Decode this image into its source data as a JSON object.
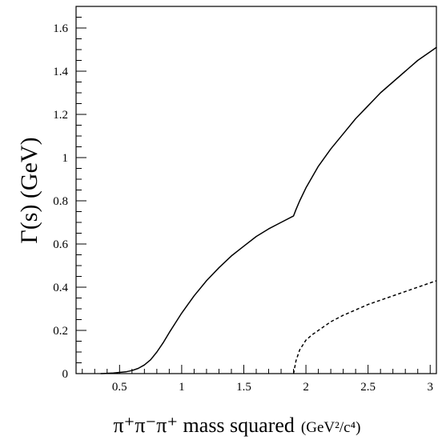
{
  "chart_data": {
    "type": "line",
    "title": "",
    "ylabel": "Γ(s) (GeV)",
    "xlabel": {
      "main": "π⁺π⁻π⁺ mass squared",
      "units": "(GeV²/c⁴)"
    },
    "xlim": [
      0.15,
      3.05
    ],
    "ylim": [
      0,
      1.7
    ],
    "xticks": [
      0.5,
      1,
      1.5,
      2,
      2.5,
      3
    ],
    "xtick_labels": [
      "0.5",
      "1",
      "1.5",
      "2",
      "2.5",
      "3"
    ],
    "yticks": [
      0,
      0.2,
      0.4,
      0.6,
      0.8,
      1.0,
      1.2,
      1.4,
      1.6
    ],
    "ytick_labels": [
      "0",
      "0.2",
      "0.4",
      "0.6",
      "0.8",
      "1",
      "1.2",
      "1.4",
      "1.6"
    ],
    "grid": false,
    "legend": "none",
    "series": [
      {
        "style": "solid",
        "x": [
          0.35,
          0.45,
          0.55,
          0.6,
          0.65,
          0.7,
          0.75,
          0.8,
          0.85,
          0.9,
          0.95,
          1.0,
          1.1,
          1.2,
          1.3,
          1.4,
          1.5,
          1.6,
          1.7,
          1.8,
          1.9,
          1.92,
          1.95,
          2.0,
          2.1,
          2.2,
          2.3,
          2.4,
          2.5,
          2.6,
          2.7,
          2.8,
          2.9,
          3.0,
          3.05
        ],
        "y": [
          0.0,
          0.003,
          0.008,
          0.014,
          0.024,
          0.04,
          0.064,
          0.1,
          0.142,
          0.19,
          0.235,
          0.28,
          0.36,
          0.43,
          0.49,
          0.545,
          0.59,
          0.635,
          0.67,
          0.7,
          0.73,
          0.76,
          0.8,
          0.86,
          0.96,
          1.04,
          1.11,
          1.18,
          1.24,
          1.3,
          1.35,
          1.4,
          1.45,
          1.49,
          1.51
        ]
      },
      {
        "style": "dashed",
        "x": [
          1.9,
          1.92,
          1.95,
          2.0,
          2.05,
          2.1,
          2.2,
          2.3,
          2.4,
          2.5,
          2.6,
          2.7,
          2.8,
          2.9,
          3.0,
          3.05
        ],
        "y": [
          0.0,
          0.06,
          0.11,
          0.155,
          0.18,
          0.2,
          0.24,
          0.27,
          0.295,
          0.32,
          0.34,
          0.36,
          0.38,
          0.4,
          0.42,
          0.43
        ]
      }
    ]
  }
}
